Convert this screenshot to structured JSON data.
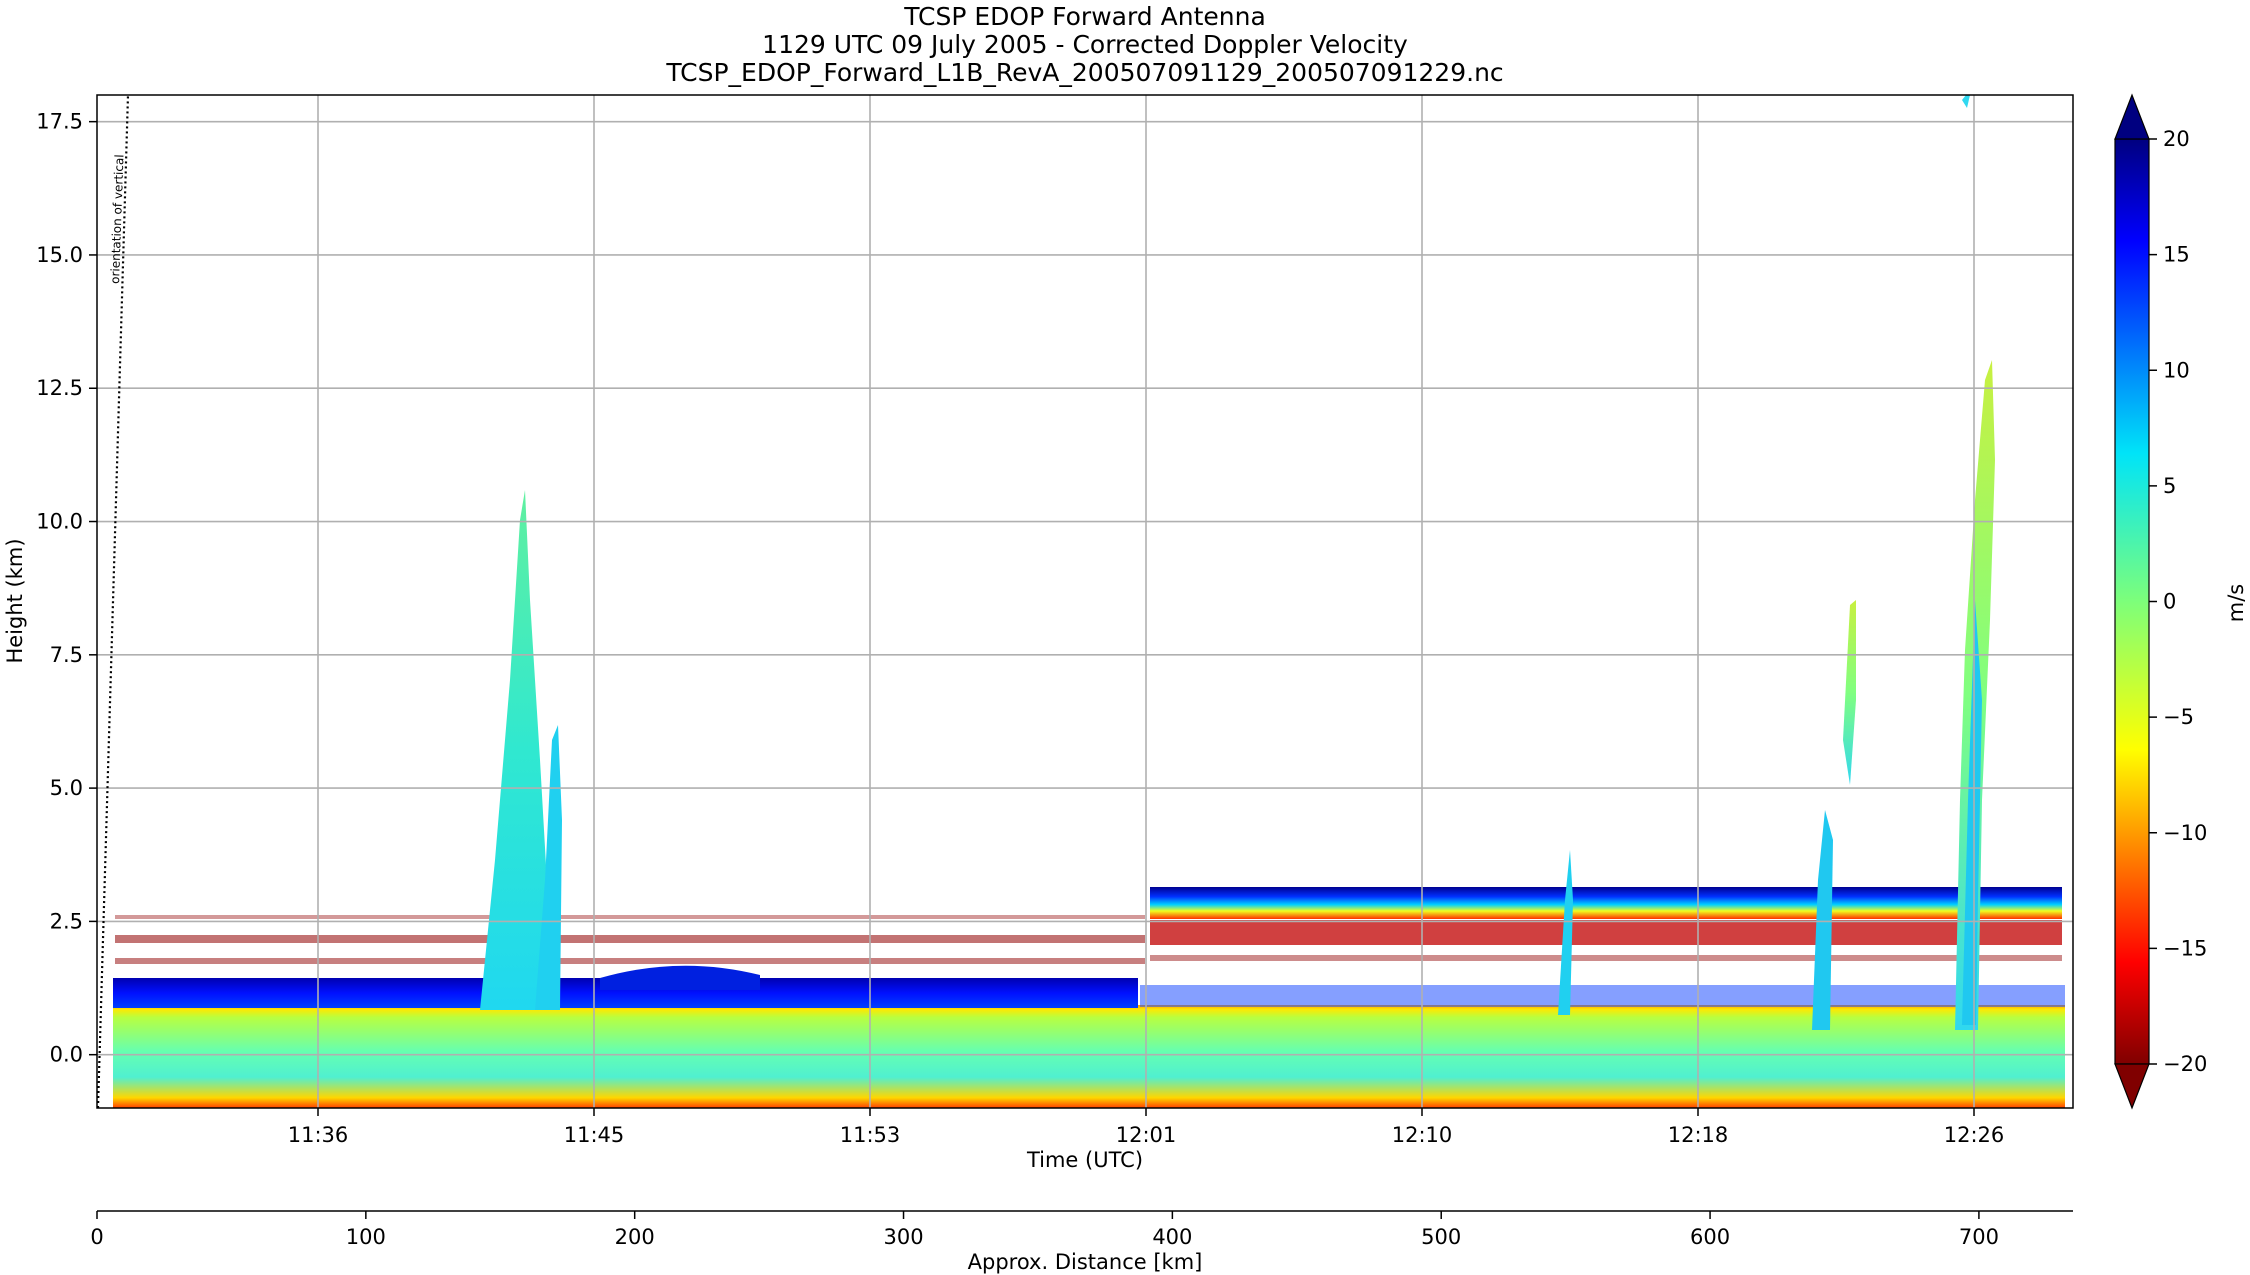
{
  "chart_data": {
    "type": "heatmap",
    "title_lines": [
      "TCSP EDOP Forward Antenna",
      "1129 UTC 09 July 2005 - Corrected Doppler Velocity",
      "TCSP_EDOP_Forward_L1B_RevA_200507091129_200507091229.nc"
    ],
    "xlabel": "Time (UTC)",
    "ylabel": "Height (km)",
    "x_ticks": [
      "11:36",
      "11:45",
      "11:53",
      "12:01",
      "12:10",
      "12:18",
      "12:26"
    ],
    "y_ticks": [
      "0.0",
      "2.5",
      "5.0",
      "7.5",
      "10.0",
      "12.5",
      "15.0",
      "17.5"
    ],
    "ylim": [
      -1.0,
      18.0
    ],
    "distance_axis": {
      "label": "Approx. Distance [km]",
      "ticks": [
        "0",
        "100",
        "200",
        "300",
        "400",
        "500",
        "600",
        "700"
      ],
      "xlim": [
        0,
        735
      ]
    },
    "colorbar": {
      "label": "m/s",
      "ticks": [
        "20",
        "15",
        "10",
        "5",
        "0",
        "−5",
        "−10",
        "−15",
        "−20"
      ],
      "range": [
        -20,
        20
      ],
      "colormap": "jet_r",
      "extend": "both"
    },
    "annotation": "orientation of vertical",
    "grid": true,
    "features": [
      {
        "name": "surface return",
        "height_km": [
          -1.0,
          0.8
        ],
        "velocity_ms": [
          -5,
          3
        ]
      },
      {
        "name": "bright band / melting layer",
        "height_km": [
          0.8,
          1.4
        ],
        "velocity_ms": [
          12,
          20
        ]
      },
      {
        "name": "upper bright band (after 12:01)",
        "height_km": [
          2.8,
          3.1
        ],
        "velocity_ms": [
          10,
          20
        ]
      },
      {
        "name": "mirror layer (after 12:01)",
        "height_km": [
          2.3,
          2.8
        ],
        "velocity_ms": [
          -20,
          -10
        ]
      },
      {
        "name": "convective cell",
        "time": "11:42",
        "top_km": 10.5,
        "velocity_ms": [
          3,
          8
        ]
      },
      {
        "name": "convective cell",
        "time": "12:15",
        "top_km": 3.8,
        "velocity_ms": [
          5,
          8
        ]
      },
      {
        "name": "convective cell",
        "time": "12:22",
        "top_km": 8.5,
        "velocity_ms": [
          -2,
          5
        ]
      },
      {
        "name": "convective cell",
        "time": "12:26",
        "top_km": 12.8,
        "velocity_ms": [
          -3,
          8
        ]
      }
    ]
  }
}
